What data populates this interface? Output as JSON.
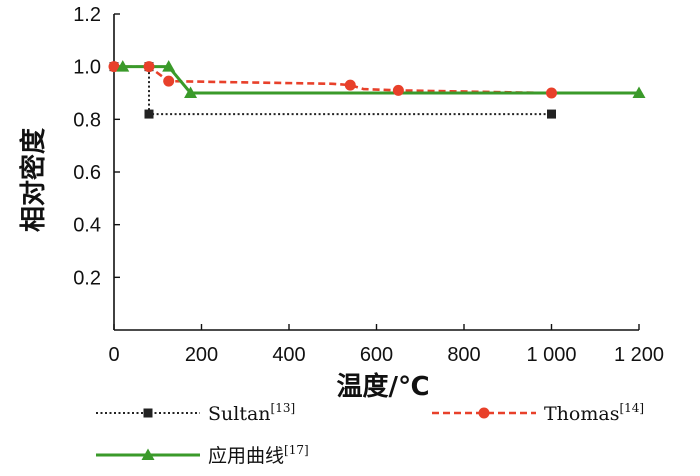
{
  "chart_data": {
    "type": "line",
    "xlabel": "温度/℃",
    "ylabel": "相对密度",
    "xlim": [
      0,
      1200
    ],
    "ylim": [
      0,
      1.2
    ],
    "x_ticks": [
      0,
      200,
      400,
      600,
      800,
      1000,
      1200
    ],
    "x_tick_labels": [
      "0",
      "200",
      "400",
      "600",
      "800",
      "1 000",
      "1 200"
    ],
    "y_ticks": [
      0.2,
      0.4,
      0.6,
      0.8,
      1.0,
      1.2
    ],
    "y_tick_labels": [
      "0.2",
      "0.4",
      "0.6",
      "0.8",
      "1.0",
      "1.2"
    ],
    "grid": false,
    "legend_position": "bottom",
    "series": [
      {
        "name": "Sultan",
        "ref": "[13]",
        "color": "#222222",
        "line_style": "dotted",
        "marker": "square",
        "marker_points": [
          [
            0,
            1.0
          ],
          [
            80,
            1.0
          ],
          [
            80,
            0.82
          ],
          [
            1000,
            0.82
          ]
        ],
        "points": [
          [
            0,
            1.0
          ],
          [
            20,
            1.0
          ],
          [
            70,
            1.0
          ],
          [
            80,
            1.0
          ],
          [
            80,
            0.82
          ],
          [
            1000,
            0.82
          ]
        ]
      },
      {
        "name": "Thomas",
        "ref": "[14]",
        "color": "#e8402a",
        "line_style": "dashed",
        "marker": "circle",
        "marker_points": [
          [
            0,
            1.0
          ],
          [
            80,
            1.0
          ],
          [
            125,
            0.945
          ],
          [
            540,
            0.93
          ],
          [
            650,
            0.91
          ],
          [
            1000,
            0.9
          ]
        ],
        "points": [
          [
            0,
            1.0
          ],
          [
            80,
            1.0
          ],
          [
            125,
            0.945
          ],
          [
            500,
            0.935
          ],
          [
            540,
            0.93
          ],
          [
            570,
            0.915
          ],
          [
            650,
            0.91
          ],
          [
            1000,
            0.9
          ]
        ]
      },
      {
        "name": "应用曲线",
        "ref": "[17]",
        "color": "#3a9a2a",
        "line_style": "solid",
        "marker": "triangle",
        "marker_points": [
          [
            20,
            1.0
          ],
          [
            125,
            1.0
          ],
          [
            175,
            0.9
          ],
          [
            1200,
            0.9
          ]
        ],
        "points": [
          [
            0,
            1.0
          ],
          [
            20,
            1.0
          ],
          [
            125,
            1.0
          ],
          [
            175,
            0.9
          ],
          [
            1200,
            0.9
          ]
        ]
      }
    ]
  }
}
